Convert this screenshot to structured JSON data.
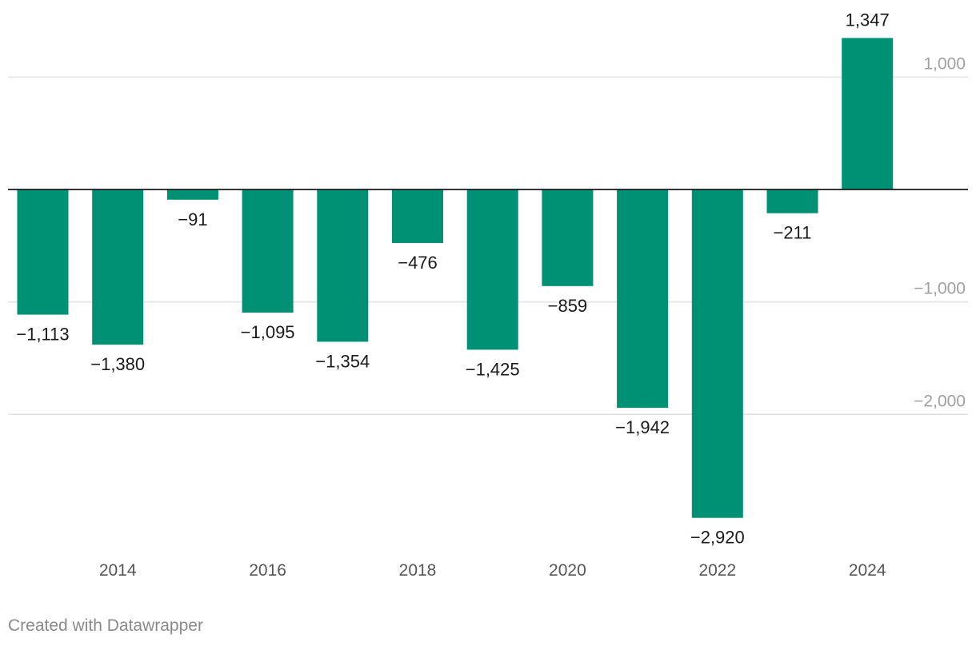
{
  "chart_data": {
    "type": "bar",
    "categories": [
      "2013",
      "2014",
      "2015",
      "2016",
      "2017",
      "2018",
      "2019",
      "2020",
      "2021",
      "2022",
      "2023",
      "2024"
    ],
    "values": [
      -1113,
      -1380,
      -91,
      -1095,
      -1354,
      -476,
      -1425,
      -859,
      -1942,
      -2920,
      -211,
      1347
    ],
    "value_labels": [
      "−1,113",
      "−1,380",
      "−91",
      "−1,095",
      "−1,354",
      "−476",
      "−1,425",
      "−859",
      "−1,942",
      "−2,920",
      "−211",
      "1,347"
    ],
    "x_tick_labels": [
      {
        "category": "2014",
        "label": "2014"
      },
      {
        "category": "2016",
        "label": "2016"
      },
      {
        "category": "2018",
        "label": "2018"
      },
      {
        "category": "2020",
        "label": "2020"
      },
      {
        "category": "2022",
        "label": "2022"
      },
      {
        "category": "2024",
        "label": "2024"
      }
    ],
    "y_ticks": [
      {
        "value": 1000,
        "label": "1,000"
      },
      {
        "value": -1000,
        "label": "−1,000"
      },
      {
        "value": -2000,
        "label": "−2,000"
      }
    ],
    "ylim": [
      -3000,
      1350
    ],
    "title": "",
    "xlabel": "",
    "ylabel": "",
    "grid": true,
    "legend": "none",
    "bar_color": "#009175"
  },
  "footer": {
    "credit": "Created with Datawrapper"
  },
  "colors": {
    "bar": "#009175",
    "grid": "#e0e0e0",
    "zero_line": "#1a1a1a",
    "y_tick_text": "#a0a0a0",
    "x_tick_text": "#555555",
    "value_label_text": "#1a1a1a"
  }
}
